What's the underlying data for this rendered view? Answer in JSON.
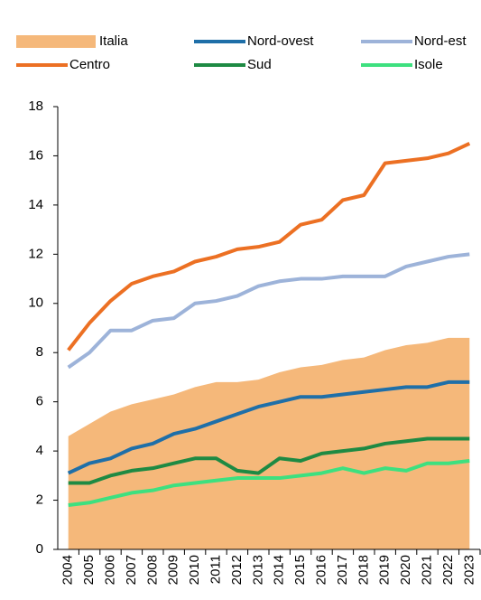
{
  "chart_data": {
    "type": "line",
    "categories": [
      "2004",
      "2005",
      "2006",
      "2007",
      "2008",
      "2009",
      "2010",
      "2011",
      "2012",
      "2013",
      "2014",
      "2015",
      "2016",
      "2017",
      "2018",
      "2019",
      "2020",
      "2021",
      "2022",
      "2023"
    ],
    "series": [
      {
        "name": "Italia",
        "style": "area",
        "color": "#f5b87a",
        "values": [
          4.6,
          5.1,
          5.6,
          5.9,
          6.1,
          6.3,
          6.6,
          6.8,
          6.8,
          6.9,
          7.2,
          7.4,
          7.5,
          7.7,
          7.8,
          8.1,
          8.3,
          8.4,
          8.6,
          8.6
        ]
      },
      {
        "name": "Nord-ovest",
        "style": "line",
        "color": "#1f6fa8",
        "values": [
          3.1,
          3.5,
          3.7,
          4.1,
          4.3,
          4.7,
          4.9,
          5.2,
          5.5,
          5.8,
          6.0,
          6.2,
          6.2,
          6.3,
          6.4,
          6.5,
          6.6,
          6.6,
          6.8,
          6.8
        ]
      },
      {
        "name": "Nord-est",
        "style": "line",
        "color": "#9db3d9",
        "values": [
          7.4,
          8.0,
          8.9,
          8.9,
          9.3,
          9.4,
          10.0,
          10.1,
          10.3,
          10.7,
          10.9,
          11.0,
          11.0,
          11.1,
          11.1,
          11.1,
          11.5,
          11.7,
          11.9,
          12.0
        ]
      },
      {
        "name": "Centro",
        "style": "line",
        "color": "#ec7023",
        "values": [
          8.1,
          9.2,
          10.1,
          10.8,
          11.1,
          11.3,
          11.7,
          11.9,
          12.2,
          12.3,
          12.5,
          13.2,
          13.4,
          14.2,
          14.4,
          15.7,
          15.8,
          15.9,
          16.1,
          16.5
        ]
      },
      {
        "name": "Sud",
        "style": "line",
        "color": "#1e8a43",
        "values": [
          2.7,
          2.7,
          3.0,
          3.2,
          3.3,
          3.5,
          3.7,
          3.7,
          3.2,
          3.1,
          3.7,
          3.6,
          3.9,
          4.0,
          4.1,
          4.3,
          4.4,
          4.5,
          4.5,
          4.5
        ]
      },
      {
        "name": "Isole",
        "style": "line",
        "color": "#3de07f",
        "values": [
          1.8,
          1.9,
          2.1,
          2.3,
          2.4,
          2.6,
          2.7,
          2.8,
          2.9,
          2.9,
          2.9,
          3.0,
          3.1,
          3.3,
          3.1,
          3.3,
          3.2,
          3.5,
          3.5,
          3.6
        ]
      }
    ],
    "ylim": [
      0,
      18
    ],
    "yticks": [
      0,
      2,
      4,
      6,
      8,
      10,
      12,
      14,
      16,
      18
    ],
    "grid": false,
    "legend": "top"
  }
}
